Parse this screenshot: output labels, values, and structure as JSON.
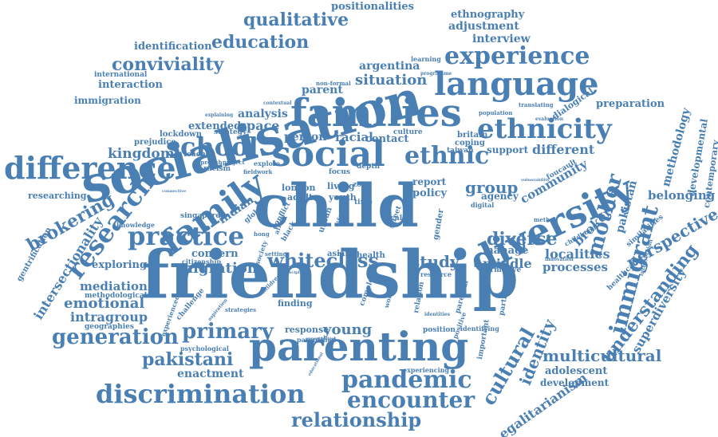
{
  "color": "#4a7fb3",
  "words": [
    {
      "text": "friendship",
      "size": "xxl"
    },
    {
      "text": "socialisation",
      "size": "xl"
    },
    {
      "text": "child",
      "size": "xl"
    },
    {
      "text": "parenting",
      "size": "l"
    },
    {
      "text": "families",
      "size": "l"
    },
    {
      "text": "diversity",
      "size": "l"
    },
    {
      "text": "social",
      "size": "l"
    },
    {
      "text": "language",
      "size": "l"
    },
    {
      "text": "family",
      "size": "l"
    },
    {
      "text": "difference",
      "size": "m"
    },
    {
      "text": "ethnicity",
      "size": "m"
    },
    {
      "text": "discrimination",
      "size": "m"
    },
    {
      "text": "school",
      "size": "m"
    },
    {
      "text": "research",
      "size": "m"
    },
    {
      "text": "practice",
      "size": "m"
    },
    {
      "text": "experience",
      "size": "m"
    },
    {
      "text": "pandemic",
      "size": "m"
    },
    {
      "text": "ethnic",
      "size": "m"
    },
    {
      "text": "whiteclass",
      "size": "m"
    },
    {
      "text": "generation",
      "size": "m"
    },
    {
      "text": "primary",
      "size": "m"
    },
    {
      "text": "encounter",
      "size": "m"
    },
    {
      "text": "immigrant",
      "size": "m"
    },
    {
      "text": "mother",
      "size": "m"
    },
    {
      "text": "cultural",
      "size": "m"
    },
    {
      "text": "education",
      "size": "s"
    },
    {
      "text": "qualitative",
      "size": "s"
    },
    {
      "text": "conviviality",
      "size": "s"
    },
    {
      "text": "relationship",
      "size": "s"
    },
    {
      "text": "pakistani",
      "size": "s"
    },
    {
      "text": "brokering",
      "size": "s"
    },
    {
      "text": "understanding",
      "size": "s"
    },
    {
      "text": "perspective",
      "size": "s"
    },
    {
      "text": "multicultural",
      "size": "s"
    },
    {
      "text": "identity",
      "size": "s"
    },
    {
      "text": "diverse",
      "size": "s"
    },
    {
      "text": "group",
      "size": "s"
    },
    {
      "text": "study",
      "size": "s"
    },
    {
      "text": "emotional",
      "size": "s"
    },
    {
      "text": "migration",
      "size": "s"
    },
    {
      "text": "kingdom",
      "size": "s"
    },
    {
      "text": "situation",
      "size": "s"
    },
    {
      "text": "space",
      "size": "s"
    },
    {
      "text": "community",
      "size": "xs"
    },
    {
      "text": "different",
      "size": "xs"
    },
    {
      "text": "localities",
      "size": "xs"
    },
    {
      "text": "middle",
      "size": "xs"
    },
    {
      "text": "processes",
      "size": "xs"
    },
    {
      "text": "intragroup",
      "size": "xs"
    },
    {
      "text": "mediation",
      "size": "xs"
    },
    {
      "text": "exploring",
      "size": "xs"
    },
    {
      "text": "racial",
      "size": "xs"
    },
    {
      "text": "person",
      "size": "xs"
    },
    {
      "text": "analysis",
      "size": "xs"
    },
    {
      "text": "extended",
      "size": "xs"
    },
    {
      "text": "identification",
      "size": "xs"
    },
    {
      "text": "interaction",
      "size": "xs"
    },
    {
      "text": "immigration",
      "size": "xs"
    },
    {
      "text": "preparation",
      "size": "xs"
    },
    {
      "text": "adolescent",
      "size": "xs"
    },
    {
      "text": "development",
      "size": "xs"
    },
    {
      "text": "egalitarianism",
      "size": "xs"
    },
    {
      "text": "intersectionality",
      "size": "xs"
    },
    {
      "text": "superdiversity",
      "size": "xs"
    },
    {
      "text": "belonging",
      "size": "xs"
    },
    {
      "text": "methodology",
      "size": "xs"
    },
    {
      "text": "developmental",
      "size": "xs"
    },
    {
      "text": "contemporary",
      "size": "xxs"
    },
    {
      "text": "broker",
      "size": "xs"
    },
    {
      "text": "pakistan",
      "size": "xs"
    },
    {
      "text": "enactment",
      "size": "xs"
    },
    {
      "text": "young",
      "size": "xs"
    },
    {
      "text": "indian",
      "size": "xs"
    },
    {
      "text": "adjustment",
      "size": "xs"
    },
    {
      "text": "interview",
      "size": "xs"
    },
    {
      "text": "ethnography",
      "size": "xs"
    },
    {
      "text": "positionalities",
      "size": "xs"
    },
    {
      "text": "argentina",
      "size": "xs"
    },
    {
      "text": "parent",
      "size": "xs"
    },
    {
      "text": "manage",
      "size": "xs"
    },
    {
      "text": "concern",
      "size": "xs"
    },
    {
      "text": "contact",
      "size": "xs"
    },
    {
      "text": "policy",
      "size": "xs"
    },
    {
      "text": "report",
      "size": "xs"
    },
    {
      "text": "agency",
      "size": "xs"
    },
    {
      "text": "support",
      "size": "xs"
    },
    {
      "text": "researching",
      "size": "xxs"
    },
    {
      "text": "gentrification",
      "size": "xxs"
    },
    {
      "text": "methodological",
      "size": "xxs"
    },
    {
      "text": "geographies",
      "size": "xxs"
    },
    {
      "text": "international",
      "size": "xxs"
    },
    {
      "text": "prejudice",
      "size": "xxs"
    },
    {
      "text": "lockdown",
      "size": "xxs"
    },
    {
      "text": "strategy",
      "size": "xxs"
    },
    {
      "text": "teacher",
      "size": "xxs"
    },
    {
      "text": "racism",
      "size": "xxs"
    },
    {
      "text": "singapore",
      "size": "xxs"
    },
    {
      "text": "knowledge",
      "size": "xxs"
    },
    {
      "text": "citizenship",
      "size": "xxs"
    },
    {
      "text": "challenge",
      "size": "xxs"
    },
    {
      "text": "experienced",
      "size": "xxs"
    },
    {
      "text": "psychological",
      "size": "xxs"
    },
    {
      "text": "parentified",
      "size": "xxs"
    },
    {
      "text": "response",
      "size": "xxs"
    },
    {
      "text": "finding",
      "size": "xxs"
    },
    {
      "text": "london",
      "size": "xxs"
    },
    {
      "text": "adult",
      "size": "xxs"
    },
    {
      "text": "britain",
      "size": "xxs"
    },
    {
      "text": "coping",
      "size": "xxs"
    },
    {
      "text": "taiwan",
      "size": "xxs"
    },
    {
      "text": "culture",
      "size": "xxs"
    },
    {
      "text": "asian",
      "size": "xxs"
    },
    {
      "text": "health",
      "size": "xxs"
    },
    {
      "text": "complex",
      "size": "xxs"
    },
    {
      "text": "position",
      "size": "xxs"
    },
    {
      "text": "identifying",
      "size": "xxs"
    },
    {
      "text": "experiencing",
      "size": "xxs"
    },
    {
      "text": "normative",
      "size": "xxs"
    },
    {
      "text": "healthcare",
      "size": "xxs"
    },
    {
      "text": "similarities",
      "size": "xxs"
    },
    {
      "text": "childhood",
      "size": "xxs"
    },
    {
      "text": "participant",
      "size": "xxs"
    },
    {
      "text": "important",
      "size": "xxs"
    },
    {
      "text": "learning",
      "size": "xxs"
    },
    {
      "text": "population",
      "size": "xxs"
    },
    {
      "text": "translating",
      "size": "xxs"
    },
    {
      "text": "dialogical",
      "size": "xxs"
    },
    {
      "text": "foucault",
      "size": "xxs"
    },
    {
      "text": "digital",
      "size": "xxs"
    },
    {
      "text": "focus",
      "size": "xxs"
    },
    {
      "text": "living",
      "size": "xxs"
    },
    {
      "text": "youth",
      "size": "xxs"
    },
    {
      "text": "zone",
      "size": "xxs"
    },
    {
      "text": "time",
      "size": "xxs"
    },
    {
      "text": "depth",
      "size": "xxs"
    },
    {
      "text": "gender",
      "size": "xxs"
    },
    {
      "text": "local",
      "size": "xxs"
    },
    {
      "text": "street",
      "size": "xxs"
    },
    {
      "text": "relation",
      "size": "xxs"
    },
    {
      "text": "parental",
      "size": "xxs"
    },
    {
      "text": "resource",
      "size": "xxs"
    },
    {
      "text": "woman",
      "size": "xxs"
    },
    {
      "text": "positive",
      "size": "xxs"
    },
    {
      "text": "explore",
      "size": "xxs"
    },
    {
      "text": "approach",
      "size": "xxs"
    },
    {
      "text": "project",
      "size": "xxs"
    },
    {
      "text": "fieldwork",
      "size": "xxs"
    },
    {
      "text": "global",
      "size": "xxs"
    },
    {
      "text": "hong",
      "size": "xxs"
    },
    {
      "text": "conflict",
      "size": "xxs"
    },
    {
      "text": "black",
      "size": "xxs"
    },
    {
      "text": "africa",
      "size": "xxs"
    },
    {
      "text": "urban",
      "size": "xxs"
    },
    {
      "text": "life",
      "size": "xxs"
    },
    {
      "text": "setting",
      "size": "xxs"
    },
    {
      "text": "society",
      "size": "xxs"
    },
    {
      "text": "children",
      "size": "xxs"
    },
    {
      "text": "method",
      "size": "xxs"
    },
    {
      "text": "innovation",
      "size": "xxs"
    },
    {
      "text": "programme",
      "size": "xxs"
    },
    {
      "text": "non-formal",
      "size": "xxs"
    },
    {
      "text": "contextual",
      "size": "xxs"
    },
    {
      "text": "explaining",
      "size": "xxs"
    },
    {
      "text": "rearing",
      "size": "xxs"
    },
    {
      "text": "vulnerability",
      "size": "xxs"
    },
    {
      "text": "opportunities",
      "size": "xxs"
    },
    {
      "text": "evaluation",
      "size": "xxs"
    },
    {
      "text": "intersection",
      "size": "xxs"
    },
    {
      "text": "strategies",
      "size": "xxs"
    },
    {
      "text": "aspiration",
      "size": "xxs"
    },
    {
      "text": "discipline",
      "size": "xxs"
    },
    {
      "text": "connective",
      "size": "xxs"
    },
    {
      "text": "identities",
      "size": "xxs"
    },
    {
      "text": "educational",
      "size": "xxs"
    }
  ]
}
